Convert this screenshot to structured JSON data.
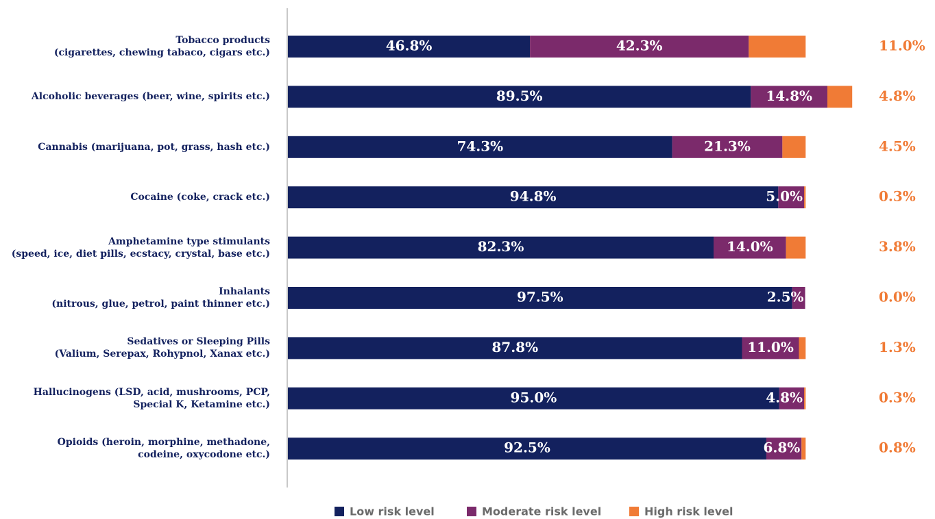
{
  "chart_data": {
    "type": "stacked-bar-horizontal",
    "categories": [
      "Tobacco products\n(cigarettes, chewing tabaco, cigars etc.)",
      "Alcoholic beverages (beer, wine, spirits etc.)",
      "Cannabis (marijuana, pot, grass, hash etc.)",
      "Cocaine (coke, crack etc.)",
      "Amphetamine type stimulants\n(speed, ice, diet pills, ecstacy, crystal, base etc.)",
      "Inhalants\n(nitrous, glue, petrol, paint thinner etc.)",
      "Sedatives or Sleeping Pills\n(Valium, Serepax, Rohypnol, Xanax etc.)",
      "Hallucinogens (LSD, acid, mushrooms, PCP,\nSpecial K, Ketamine etc.)",
      "Opioids (heroin, morphine, methadone,\ncodeine, oxycodone etc.)"
    ],
    "series": [
      {
        "name": "Low risk level",
        "color": "#13215e",
        "values": [
          46.8,
          89.5,
          74.3,
          94.8,
          82.3,
          97.5,
          87.8,
          95.0,
          92.5
        ],
        "value_labels": [
          "46.8%",
          "89.5%",
          "74.3%",
          "94.8%",
          "82.3%",
          "97.5%",
          "87.8%",
          "95.0%",
          "92.5%"
        ]
      },
      {
        "name": "Moderate risk level",
        "color": "#7b2a6b",
        "values": [
          42.3,
          14.8,
          21.3,
          5.0,
          14.0,
          2.5,
          11.0,
          4.8,
          6.8
        ],
        "value_labels": [
          "42.3%",
          "14.8%",
          "21.3%",
          "5.0%",
          "14.0%",
          "2.5%",
          "11.0%",
          "4.8%",
          "6.8%"
        ]
      },
      {
        "name": "High risk level",
        "color": "#f07b36",
        "values": [
          11.0,
          4.8,
          4.5,
          0.3,
          3.8,
          0.0,
          1.3,
          0.3,
          0.8
        ],
        "value_labels": [
          "11.0%",
          "4.8%",
          "4.5%",
          "0.3%",
          "3.8%",
          "0.0%",
          "1.3%",
          "0.3%",
          "0.8%"
        ]
      }
    ],
    "xlim": [
      0,
      110
    ]
  }
}
